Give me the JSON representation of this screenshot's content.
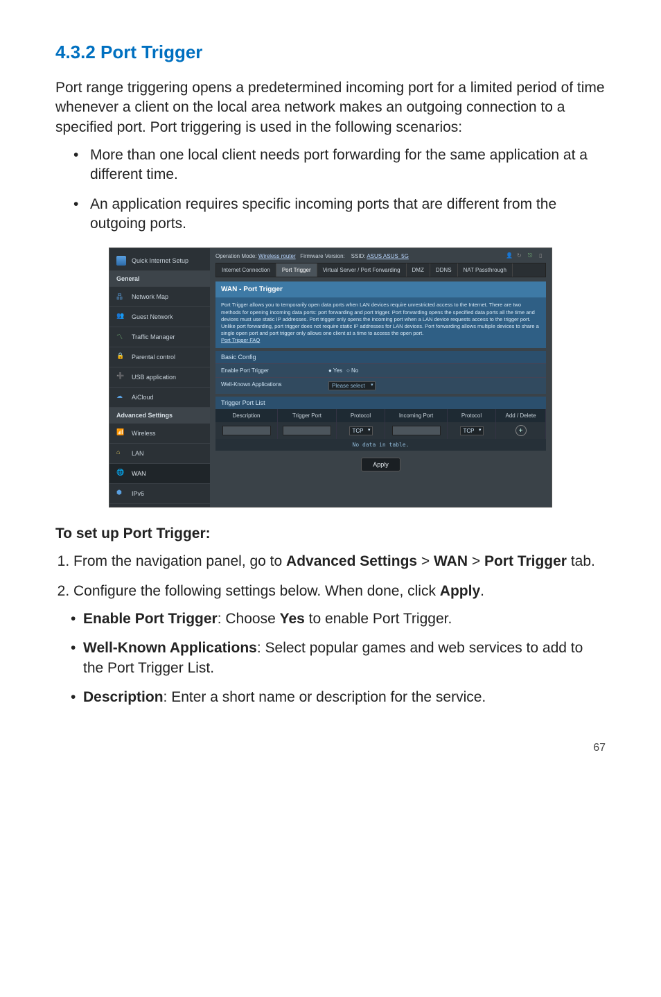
{
  "page": {
    "number": "67"
  },
  "heading": "4.3.2  Port Trigger",
  "intro": "Port range triggering opens a predetermined incoming port for a limited period of time whenever a client on the local area network makes an outgoing connection to a specified port. Port triggering is used in the following scenarios:",
  "scenarios": [
    "More than one local client needs port forwarding for the same application at a different time.",
    "An application requires specific incoming ports that are different from the outgoing ports."
  ],
  "setup_heading": "To set up Port Trigger:",
  "steps": {
    "s1_pre": "From the navigation panel, go to ",
    "s1_b1": "Advanced Settings",
    "s1_gt": " > ",
    "s1_b2": "WAN",
    "s1_gt2": " > ",
    "s1_b3": "Port Trigger",
    "s1_post": " tab.",
    "s2_pre": "Configure the following settings below. When done, click ",
    "s2_b": "Apply",
    "s2_post": ".",
    "sub1_b": "Enable Port Trigger",
    "sub1_t": ": Choose ",
    "sub1_b2": "Yes",
    "sub1_t2": " to enable Port Trigger.",
    "sub2_b": "Well-Known Applications",
    "sub2_t": ": Select popular games and web services to add to the Port Trigger List.",
    "sub3_b": "Description",
    "sub3_t": ": Enter a short name or description for the service."
  },
  "screenshot": {
    "colors": {
      "bg": "#3a4248",
      "sidebar": "#2b3136",
      "accent": "#3e7aa6",
      "accent_dark": "#2f5f85"
    },
    "topbar": {
      "op_mode_label": "Operation Mode:",
      "op_mode_value": "Wireless router",
      "fw_label": "Firmware Version:",
      "ssid_label": "SSID:",
      "ssid_value": "ASUS  ASUS_5G"
    },
    "tabs": [
      "Internet Connection",
      "Port Trigger",
      "Virtual Server / Port Forwarding",
      "DMZ",
      "DDNS",
      "NAT Passthrough"
    ],
    "active_tab": "Port Trigger",
    "sidebar": {
      "qis": "Quick Internet Setup",
      "general_header": "General",
      "general": [
        "Network Map",
        "Guest Network",
        "Traffic Manager",
        "Parental control",
        "USB application",
        "AiCloud"
      ],
      "adv_header": "Advanced Settings",
      "advanced": [
        "Wireless",
        "LAN",
        "WAN",
        "IPv6"
      ],
      "active": "WAN"
    },
    "panel": {
      "title": "WAN - Port Trigger",
      "desc": "Port Trigger allows you to temporarily open data ports when LAN devices require unrestricted access to the Internet. There are two methods for opening incoming data ports: port forwarding and port trigger. Port forwarding opens the specified data ports all the time and devices must use static IP addresses. Port trigger only opens the incoming port when a LAN device requests access to the trigger port. Unlike port forwarding, port trigger does not require static IP addresses for LAN devices. Port forwarding allows multiple devices to share a single open port and port trigger only allows one client at a time to access the open port.",
      "faq": "Port Trigger FAQ",
      "basic_header": "Basic Config",
      "enable_label": "Enable Port Trigger",
      "yes": "Yes",
      "no": "No",
      "wellknown_label": "Well-Known Applications",
      "wellknown_value": "Please select",
      "list_header": "Trigger Port List",
      "columns": [
        "Description",
        "Trigger Port",
        "Protocol",
        "Incoming Port",
        "Protocol",
        "Add / Delete"
      ],
      "tcp": "TCP",
      "nodata": "No data in table.",
      "apply": "Apply"
    }
  }
}
